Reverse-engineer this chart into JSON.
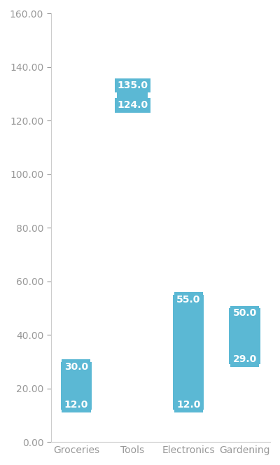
{
  "categories": [
    "Groceries",
    "Tools",
    "Electronics",
    "Gardening"
  ],
  "ranges": [
    [
      12.0,
      30.0
    ],
    [
      124.0,
      135.0
    ],
    [
      12.0,
      55.0
    ],
    [
      29.0,
      50.0
    ]
  ],
  "bar_color": "#5BB8D4",
  "label_color": "#FFFFFF",
  "label_fontsize": 10,
  "ylim": [
    0,
    160
  ],
  "yticks": [
    0,
    20,
    40,
    60,
    80,
    100,
    120,
    140,
    160
  ],
  "ytick_labels": [
    "0.00",
    "20.00",
    "40.00",
    "60.00",
    "80.00",
    "100.00",
    "120.00",
    "140.00",
    "160.00"
  ],
  "xlabel_fontsize": 10,
  "ylabel_fontsize": 10,
  "tick_color": "#999999",
  "spine_color": "#cccccc",
  "background_color": "#ffffff",
  "bar_width": 0.55
}
